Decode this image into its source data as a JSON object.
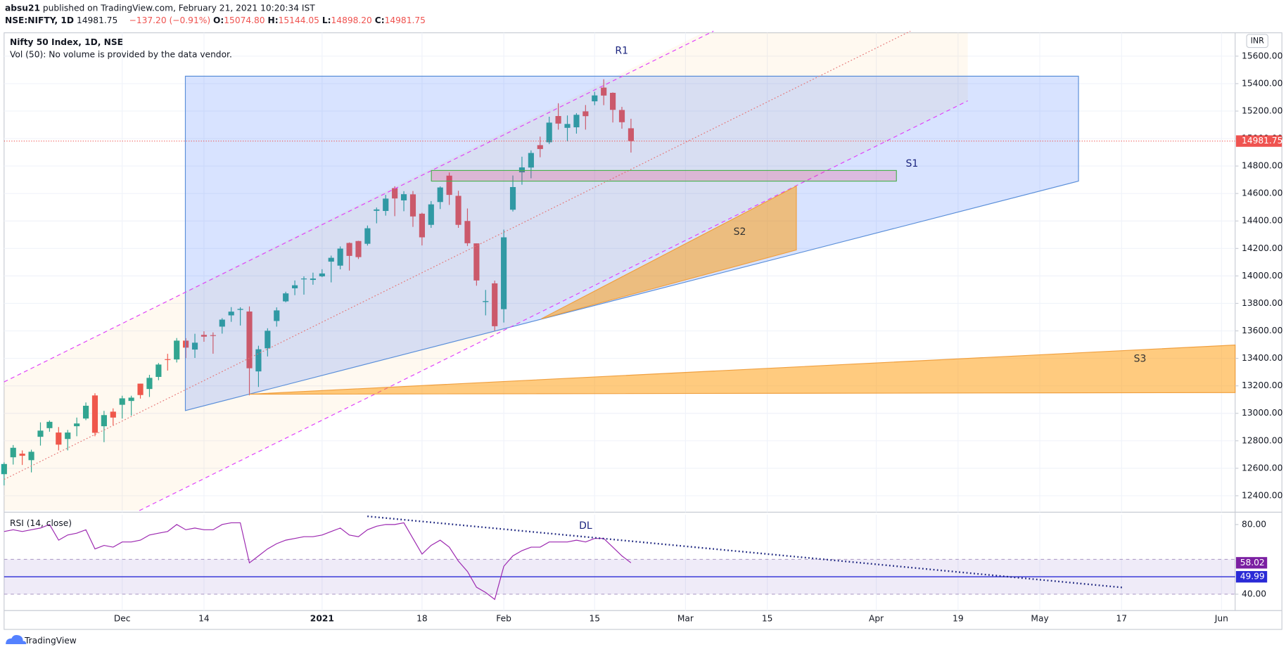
{
  "header": {
    "author": "absu21",
    "published": "published on TradingView.com, February 21, 2021 10:20:34 IST",
    "symbol": "NSE:NIFTY, 1D",
    "last": "14981.75",
    "change": "−137.20 (−0.91%)",
    "o_label": "O:",
    "o": "15074.80",
    "h_label": "H:",
    "h": "15144.05",
    "l_label": "L:",
    "l": "14898.20",
    "c_label": "C:",
    "c": "14981.75"
  },
  "footer": {
    "brand": "TradingView"
  },
  "chart_data": [
    {
      "type": "candlestick",
      "title": "Nifty 50 Index, 1D, NSE",
      "subtitle": "Vol (50): No volume is provided by the data vendor.",
      "currency": "INR",
      "annotations": [
        "R1",
        "S1",
        "S2",
        "S3"
      ],
      "up_color": "#26a69a",
      "down_color": "#ef5350",
      "grid": true,
      "x": [
        0,
        1,
        2,
        3,
        4,
        5,
        6,
        7,
        8,
        9,
        10,
        11,
        12,
        13,
        14,
        15,
        16,
        17,
        18,
        19,
        20,
        21,
        22,
        23,
        24,
        25,
        26,
        27,
        28,
        29,
        30,
        31,
        32,
        33,
        34,
        35,
        36,
        37,
        38,
        39,
        40,
        41,
        42,
        43,
        44,
        45,
        46,
        47,
        48,
        49,
        50,
        51,
        52,
        53,
        54,
        55,
        56,
        57,
        58,
        59,
        60,
        61,
        62,
        63,
        64,
        65,
        66,
        67,
        68,
        69
      ],
      "open": [
        12557,
        12680,
        12706,
        12659,
        12829,
        12892,
        12860,
        12813,
        12906,
        12962,
        13130,
        12906,
        13012,
        13062,
        13090,
        13216,
        13177,
        13265,
        13394,
        13392,
        13529,
        13464,
        13571,
        13569,
        13631,
        13713,
        13753,
        13741,
        13305,
        13473,
        13672,
        13815,
        13910,
        13980,
        13971,
        13997,
        14104,
        14075,
        14240,
        14254,
        14234,
        14474,
        14473,
        14639,
        14550,
        14594,
        14453,
        14372,
        14538,
        14730,
        14583,
        14400,
        14237,
        13810,
        13946,
        13758,
        14482,
        14754,
        14789,
        14952,
        14973,
        15164,
        15078,
        15082,
        15198,
        15271,
        15371,
        15333,
        15208,
        15074.8
      ],
      "high": [
        12643,
        12769,
        12730,
        12735,
        12934,
        12948,
        12900,
        12879,
        12969,
        13079,
        13146,
        13018,
        13036,
        13128,
        13128,
        13216,
        13280,
        13366,
        13433,
        13548,
        13547,
        13579,
        13597,
        13589,
        13693,
        13773,
        13772,
        13778,
        13492,
        13619,
        13771,
        13885,
        13967,
        13997,
        14024,
        14049,
        14148,
        14215,
        14244,
        14256,
        14367,
        14498,
        14590,
        14653,
        14617,
        14618,
        14460,
        14545,
        14652,
        14753,
        14620,
        14491,
        14237,
        13898,
        13966,
        14337,
        14731,
        14868,
        14914,
        15014,
        15159,
        15257,
        15168,
        15185,
        15244,
        15340,
        15432,
        15336,
        15231,
        15144.05
      ],
      "low": [
        12475,
        12627,
        12624,
        12570,
        12765,
        12866,
        12730,
        12730,
        12833,
        12950,
        12833,
        12790,
        12914,
        12962,
        12983,
        13107,
        13119,
        13241,
        13311,
        13370,
        13402,
        13403,
        13521,
        13434,
        13580,
        13666,
        13639,
        13131,
        13192,
        13414,
        13631,
        13808,
        13860,
        13864,
        13936,
        13991,
        13953,
        14048,
        14039,
        14123,
        14221,
        14383,
        14439,
        14435,
        14471,
        14357,
        14222,
        14350,
        14487,
        14517,
        14350,
        14218,
        13929,
        13713,
        13597,
        13661,
        14469,
        14664,
        14711,
        14864,
        14960,
        15065,
        14980,
        15036,
        15065,
        15243,
        15243,
        15117,
        15072,
        14898.2
      ],
      "close": [
        12631,
        12749,
        12691,
        12720,
        12874,
        12938,
        12772,
        12860,
        12926,
        13055,
        12858,
        12987,
        12969,
        13109,
        13114,
        13133,
        13258,
        13355,
        13393,
        13529,
        13478,
        13514,
        13558,
        13567,
        13682,
        13740,
        13760,
        13328,
        13466,
        13601,
        13749,
        13873,
        13932,
        13981,
        13981,
        14018,
        14132,
        14199,
        14146,
        14137,
        14347,
        14484,
        14563,
        14564,
        14595,
        14433,
        14281,
        14521,
        14644,
        14590,
        14372,
        14238,
        13967,
        13817,
        13634,
        14281,
        14647,
        14790,
        14895,
        14924,
        15116,
        15109,
        15106,
        15173,
        15163,
        15314,
        15313,
        15209,
        15119,
        14981.75
      ],
      "xlim": [
        0,
        135.5
      ],
      "xticks": [
        {
          "value": 13,
          "label": "Dec"
        },
        {
          "value": 22,
          "label": "14"
        },
        {
          "value": 35,
          "label": "2021"
        },
        {
          "value": 46,
          "label": "18"
        },
        {
          "value": 55,
          "label": "Feb"
        },
        {
          "value": 65,
          "label": "15"
        },
        {
          "value": 75,
          "label": "Mar"
        },
        {
          "value": 84,
          "label": "15"
        },
        {
          "value": 96,
          "label": "Apr"
        },
        {
          "value": 105,
          "label": "19"
        },
        {
          "value": 114,
          "label": "May"
        },
        {
          "value": 123,
          "label": "17"
        },
        {
          "value": 134,
          "label": "Jun"
        }
      ],
      "ylim": [
        12280,
        15770
      ],
      "yticks": [
        {
          "value": 12400,
          "label": "12400.00"
        },
        {
          "value": 12600,
          "label": "12600.00"
        },
        {
          "value": 12800,
          "label": "12800.00"
        },
        {
          "value": 13000,
          "label": "13000.00"
        },
        {
          "value": 13200,
          "label": "13200.00"
        },
        {
          "value": 13400,
          "label": "13400.00"
        },
        {
          "value": 13600,
          "label": "13600.00"
        },
        {
          "value": 13800,
          "label": "13800.00"
        },
        {
          "value": 14000,
          "label": "14000.00"
        },
        {
          "value": 14200,
          "label": "14200.00"
        },
        {
          "value": 14400,
          "label": "14400.00"
        },
        {
          "value": 14600,
          "label": "14600.00"
        },
        {
          "value": 14800,
          "label": "14800.00"
        },
        {
          "value": 15000,
          "label": "15000.00"
        },
        {
          "value": 15200,
          "label": "15200.00"
        },
        {
          "value": 15400,
          "label": "15400.00"
        },
        {
          "value": 15600,
          "label": "15600.00"
        }
      ]
    },
    {
      "type": "line",
      "title": "RSI (14, close)",
      "annotations": [
        "DL"
      ],
      "color": "#9c27b0",
      "x": [
        0,
        1,
        2,
        3,
        4,
        5,
        6,
        7,
        8,
        9,
        10,
        11,
        12,
        13,
        14,
        15,
        16,
        17,
        18,
        19,
        20,
        21,
        22,
        23,
        24,
        25,
        26,
        27,
        28,
        29,
        30,
        31,
        32,
        33,
        34,
        35,
        36,
        37,
        38,
        39,
        40,
        41,
        42,
        43,
        44,
        45,
        46,
        47,
        48,
        49,
        50,
        51,
        52,
        53,
        54,
        55,
        56,
        57,
        58,
        59,
        60,
        61,
        62,
        63,
        64,
        65,
        66,
        67,
        68,
        69
      ],
      "values": [
        76,
        77,
        76,
        77,
        78,
        80,
        71,
        74,
        75,
        77,
        66,
        68,
        67,
        70,
        70,
        71,
        74,
        75,
        76,
        80,
        77,
        78,
        77,
        77,
        80,
        81,
        81,
        58,
        62,
        66,
        69,
        71,
        72,
        73,
        73,
        74,
        76,
        78,
        74,
        73,
        77,
        79,
        80,
        80,
        81,
        72,
        63,
        68,
        71,
        67,
        59,
        53,
        44,
        41,
        37,
        56,
        62,
        65,
        67,
        67,
        70,
        70,
        70,
        71,
        70,
        72,
        72,
        67,
        62,
        58.02
      ],
      "band": [
        40,
        60
      ],
      "band_color": "#7e57c2",
      "level": 49.99,
      "level_color": "#2a2ad6",
      "ylim": [
        30.6,
        85.65
      ],
      "yticks": [
        {
          "value": 40,
          "label": "40.00"
        },
        {
          "value": 80,
          "label": "80.00"
        }
      ]
    }
  ]
}
